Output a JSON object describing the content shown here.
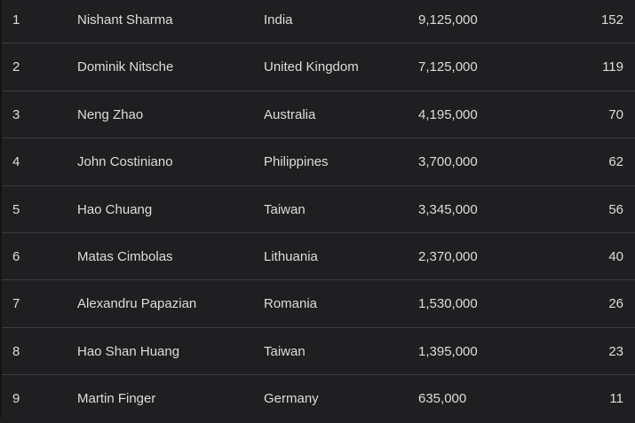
{
  "rows": [
    {
      "rank": "1",
      "name": "Nishant Sharma",
      "country": "India",
      "score": "9,125,000",
      "count": "152"
    },
    {
      "rank": "2",
      "name": "Dominik Nitsche",
      "country": "United Kingdom",
      "score": "7,125,000",
      "count": "119"
    },
    {
      "rank": "3",
      "name": "Neng Zhao",
      "country": "Australia",
      "score": "4,195,000",
      "count": "70"
    },
    {
      "rank": "4",
      "name": "John Costiniano",
      "country": "Philippines",
      "score": "3,700,000",
      "count": "62"
    },
    {
      "rank": "5",
      "name": "Hao Chuang",
      "country": "Taiwan",
      "score": "3,345,000",
      "count": "56"
    },
    {
      "rank": "6",
      "name": "Matas Cimbolas",
      "country": "Lithuania",
      "score": "2,370,000",
      "count": "40"
    },
    {
      "rank": "7",
      "name": "Alexandru Papazian",
      "country": "Romania",
      "score": "1,530,000",
      "count": "26"
    },
    {
      "rank": "8",
      "name": "Hao Shan Huang",
      "country": "Taiwan",
      "score": "1,395,000",
      "count": "23"
    },
    {
      "rank": "9",
      "name": "Martin Finger",
      "country": "Germany",
      "score": "635,000",
      "count": "11"
    }
  ]
}
